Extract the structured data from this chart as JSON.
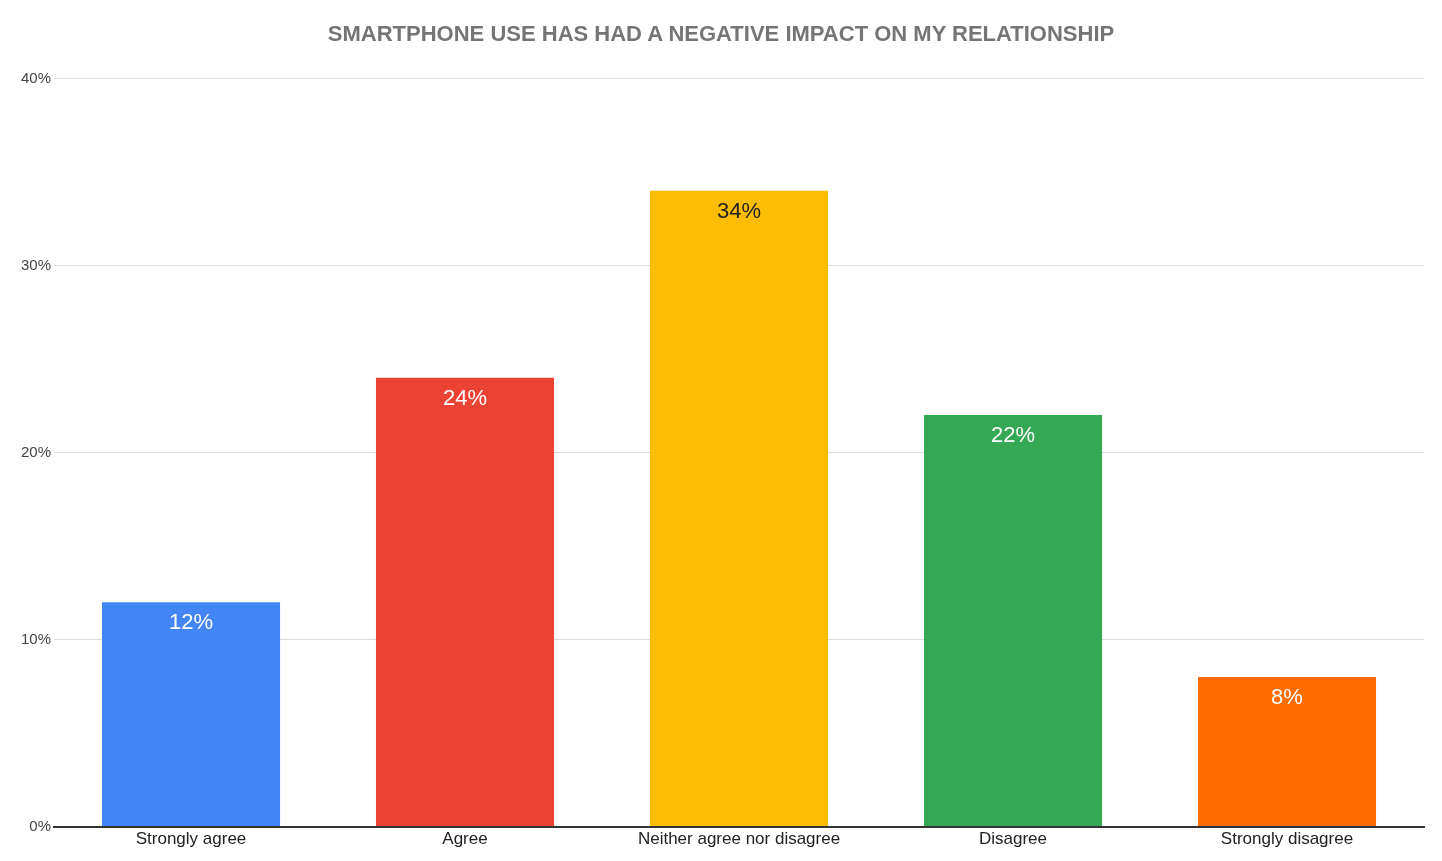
{
  "chart_data": {
    "type": "bar",
    "title": "SMARTPHONE USE HAS HAD A NEGATIVE IMPACT ON MY RELATIONSHIP",
    "categories": [
      "Strongly agree",
      "Agree",
      "Neither agree nor disagree",
      "Disagree",
      "Strongly disagree"
    ],
    "values": [
      12,
      24,
      34,
      22,
      8
    ],
    "colors": [
      "#4285f4",
      "#ea4335",
      "#fbbc04",
      "#34a853",
      "#ff6d01"
    ],
    "value_labels": [
      "12%",
      "24%",
      "34%",
      "22%",
      "8%"
    ],
    "ylim": [
      0,
      40
    ],
    "yticks": [
      {
        "value": 0,
        "label": "0%"
      },
      {
        "value": 10,
        "label": "10%"
      },
      {
        "value": 20,
        "label": "20%"
      },
      {
        "value": 30,
        "label": "30%"
      },
      {
        "value": 40,
        "label": "40%"
      }
    ],
    "grid": "y",
    "legend": false
  }
}
